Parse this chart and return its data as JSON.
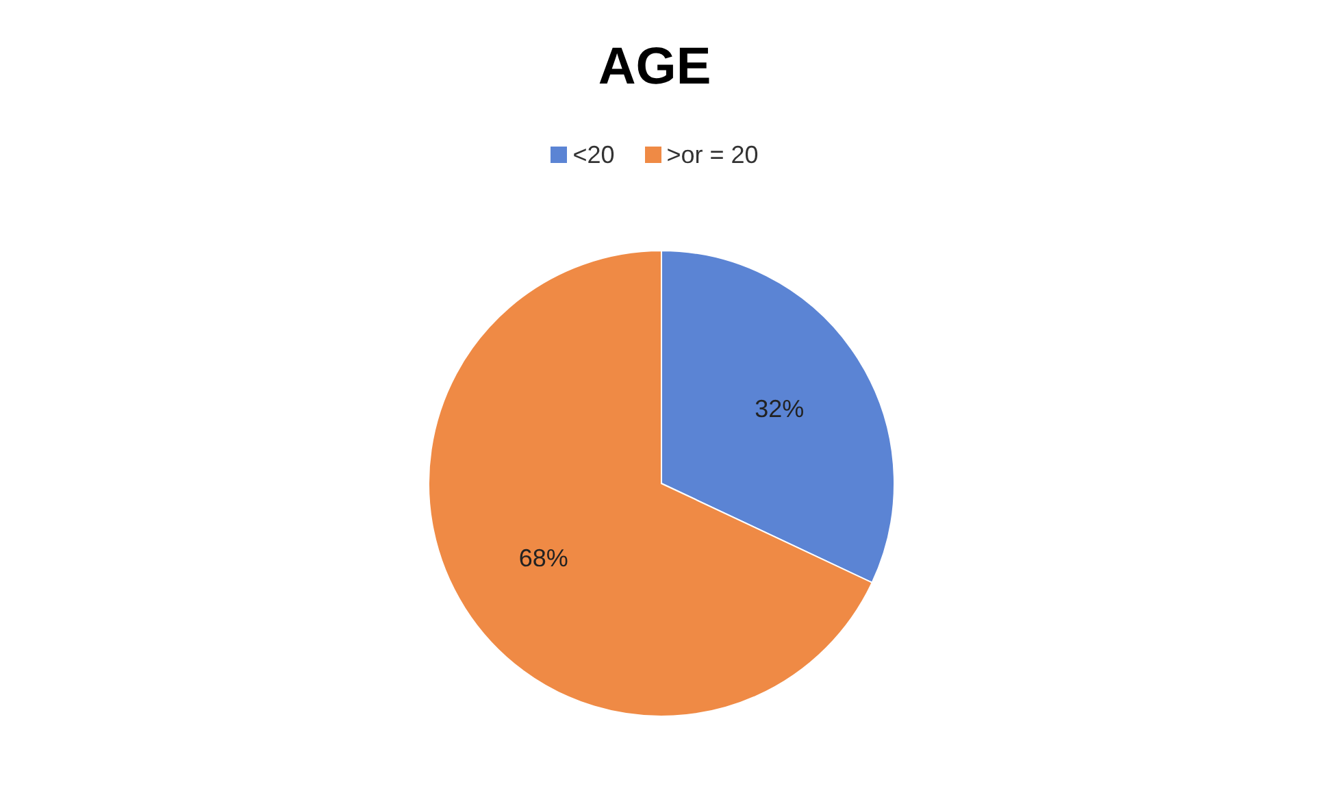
{
  "chart_data": {
    "type": "pie",
    "title": "AGE",
    "categories": [
      "<20",
      ">or = 20"
    ],
    "values": [
      32,
      68
    ],
    "colors": [
      "#5b84d4",
      "#ef8a45"
    ],
    "value_labels": [
      "32%",
      "68%"
    ],
    "legend": "top"
  }
}
